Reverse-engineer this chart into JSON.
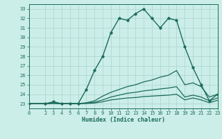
{
  "title": "",
  "xlabel": "Humidex (Indice chaleur)",
  "ylabel": "",
  "bg_color": "#cceee8",
  "grid_color": "#aad4ce",
  "line_color": "#1a6b5a",
  "xlim": [
    0,
    23
  ],
  "ylim": [
    22.5,
    33.5
  ],
  "yticks": [
    23,
    24,
    25,
    26,
    27,
    28,
    29,
    30,
    31,
    32,
    33
  ],
  "xticks": [
    0,
    2,
    3,
    4,
    5,
    6,
    7,
    8,
    9,
    10,
    11,
    12,
    13,
    14,
    15,
    16,
    17,
    18,
    19,
    20,
    21,
    22,
    23
  ],
  "lines": [
    {
      "x": [
        0,
        2,
        3,
        4,
        5,
        6,
        7,
        8,
        9,
        10,
        11,
        12,
        13,
        14,
        15,
        16,
        17,
        18,
        19,
        20,
        21,
        22,
        23
      ],
      "y": [
        23,
        23,
        23.2,
        23,
        23,
        23,
        24.5,
        26.5,
        28,
        30.5,
        32,
        31.8,
        32.5,
        33,
        32,
        31,
        32,
        31.8,
        29,
        26.8,
        25,
        23.3,
        24
      ],
      "marker": true,
      "lw": 1.0,
      "ms": 2.5
    },
    {
      "x": [
        0,
        2,
        3,
        4,
        5,
        6,
        7,
        8,
        9,
        10,
        11,
        12,
        13,
        14,
        15,
        16,
        17,
        18,
        19,
        20,
        21,
        22,
        23
      ],
      "y": [
        23,
        23,
        23.1,
        23,
        23,
        23,
        23.1,
        23.3,
        23.8,
        24.2,
        24.5,
        24.8,
        25.0,
        25.3,
        25.5,
        25.8,
        26.0,
        26.5,
        25.0,
        25.2,
        24.8,
        23.7,
        24.0
      ],
      "marker": false,
      "lw": 0.9,
      "ms": 0
    },
    {
      "x": [
        0,
        2,
        3,
        4,
        5,
        6,
        7,
        8,
        9,
        10,
        11,
        12,
        13,
        14,
        15,
        16,
        17,
        18,
        19,
        20,
        21,
        22,
        23
      ],
      "y": [
        23,
        23,
        23.05,
        23,
        23,
        23,
        23.05,
        23.15,
        23.4,
        23.7,
        23.9,
        24.1,
        24.2,
        24.35,
        24.45,
        24.55,
        24.65,
        24.8,
        23.7,
        23.9,
        23.7,
        23.3,
        23.6
      ],
      "marker": false,
      "lw": 0.9,
      "ms": 0
    },
    {
      "x": [
        0,
        2,
        3,
        4,
        5,
        6,
        7,
        8,
        9,
        10,
        11,
        12,
        13,
        14,
        15,
        16,
        17,
        18,
        19,
        20,
        21,
        22,
        23
      ],
      "y": [
        23,
        23,
        23.02,
        23,
        23,
        23,
        23.02,
        23.07,
        23.2,
        23.4,
        23.5,
        23.6,
        23.65,
        23.75,
        23.8,
        23.85,
        23.9,
        24.0,
        23.4,
        23.6,
        23.4,
        23.1,
        23.35
      ],
      "marker": false,
      "lw": 0.9,
      "ms": 0
    }
  ]
}
